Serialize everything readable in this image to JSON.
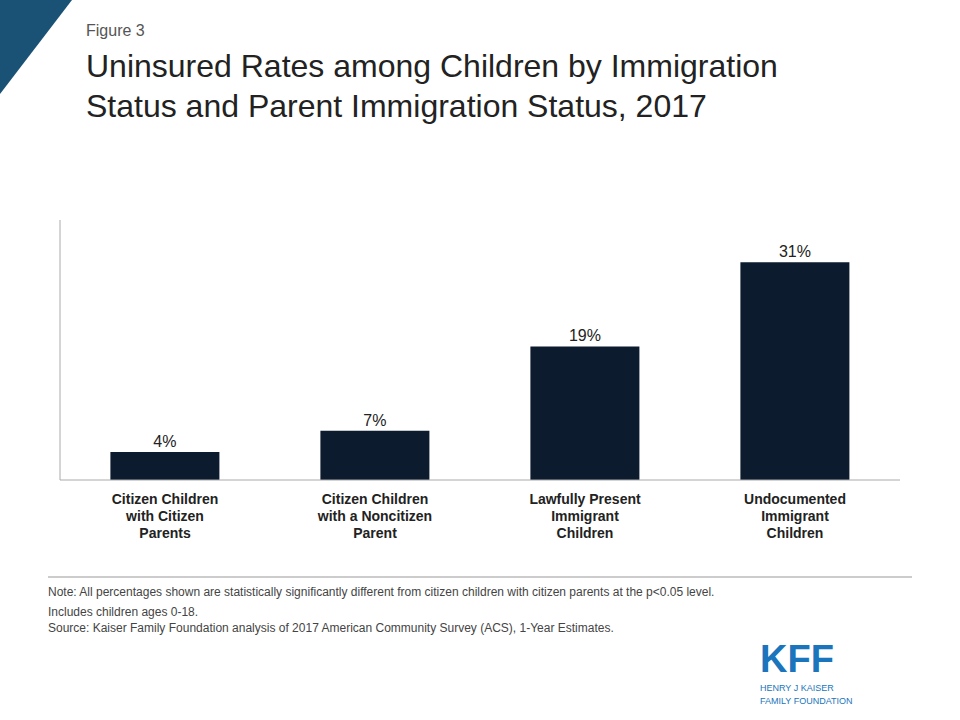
{
  "chart_data": {
    "type": "bar",
    "title": "Uninsured Rates among Children by Immigration\nStatus and Parent Immigration Status, 2017",
    "categories": [
      "Citizen Children\nwith Citizen\nParents",
      "Citizen Children\nwith a Noncitizen\nParent",
      "Lawfully Present\nImmigrant\nChildren",
      "Undocumented\nImmigrant\nChildren"
    ],
    "values": [
      4,
      7,
      19,
      31
    ],
    "value_labels": [
      "4%",
      "7%",
      "19%",
      "31%"
    ],
    "color": "#0d1b2e",
    "ylim": [
      0,
      37
    ],
    "grid": false,
    "data_labels": true,
    "tick_labels": "x",
    "annotations": [
      "Figure 3",
      "Note: All percentages shown are statistically significantly different from citizen children with citizen parents at the p<0.05 level.",
      "Includes children ages 0-18.",
      "Source: Kaiser Family Foundation analysis of 2017 American Community Survey (ACS), 1-Year Estimates.",
      "KFF",
      "HENRY J KAISER\nFAMILY FOUNDATION"
    ]
  }
}
